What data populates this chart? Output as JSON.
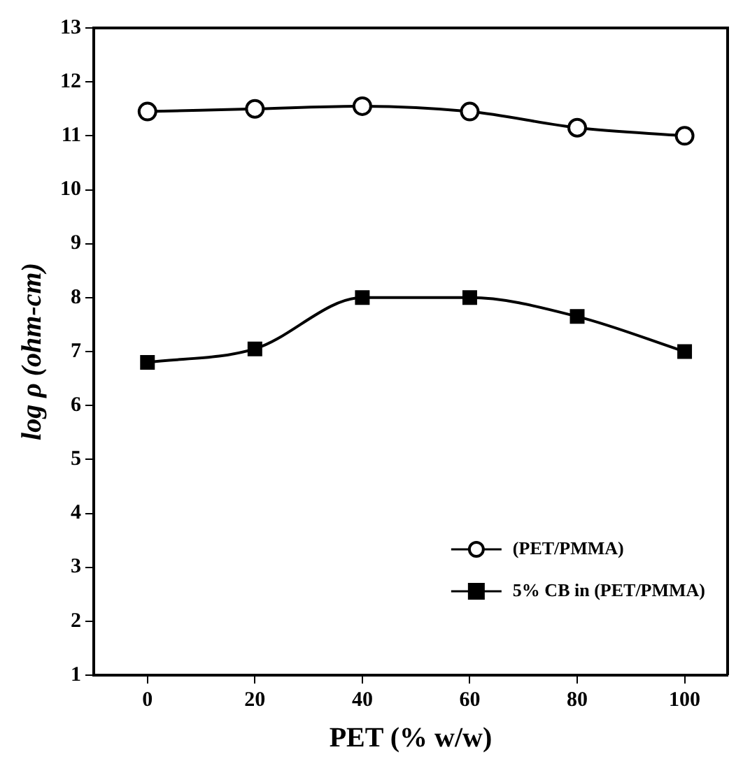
{
  "chart_data": {
    "type": "line",
    "xlabel": "PET (% w/w)",
    "ylabel": "log ρ (ohm-cm)",
    "x": [
      0,
      20,
      40,
      60,
      80,
      100
    ],
    "series": [
      {
        "name": "(PET/PMMA)",
        "color": "#000000",
        "marker": "circle",
        "values": [
          11.45,
          11.5,
          11.55,
          11.45,
          11.15,
          11.0
        ]
      },
      {
        "name": "5% CB in (PET/PMMA)",
        "color": "#000000",
        "marker": "square",
        "values": [
          6.8,
          7.05,
          8.0,
          8.0,
          7.65,
          7.0
        ]
      }
    ],
    "xlim": [
      -10,
      108
    ],
    "xticks": [
      0,
      20,
      40,
      60,
      80,
      100
    ],
    "ylim": [
      1,
      13
    ],
    "yticks": [
      1,
      2,
      3,
      4,
      5,
      6,
      7,
      8,
      9,
      10,
      11,
      12,
      13
    ],
    "grid": false,
    "legend": "bottom right",
    "line_style": "solid"
  }
}
